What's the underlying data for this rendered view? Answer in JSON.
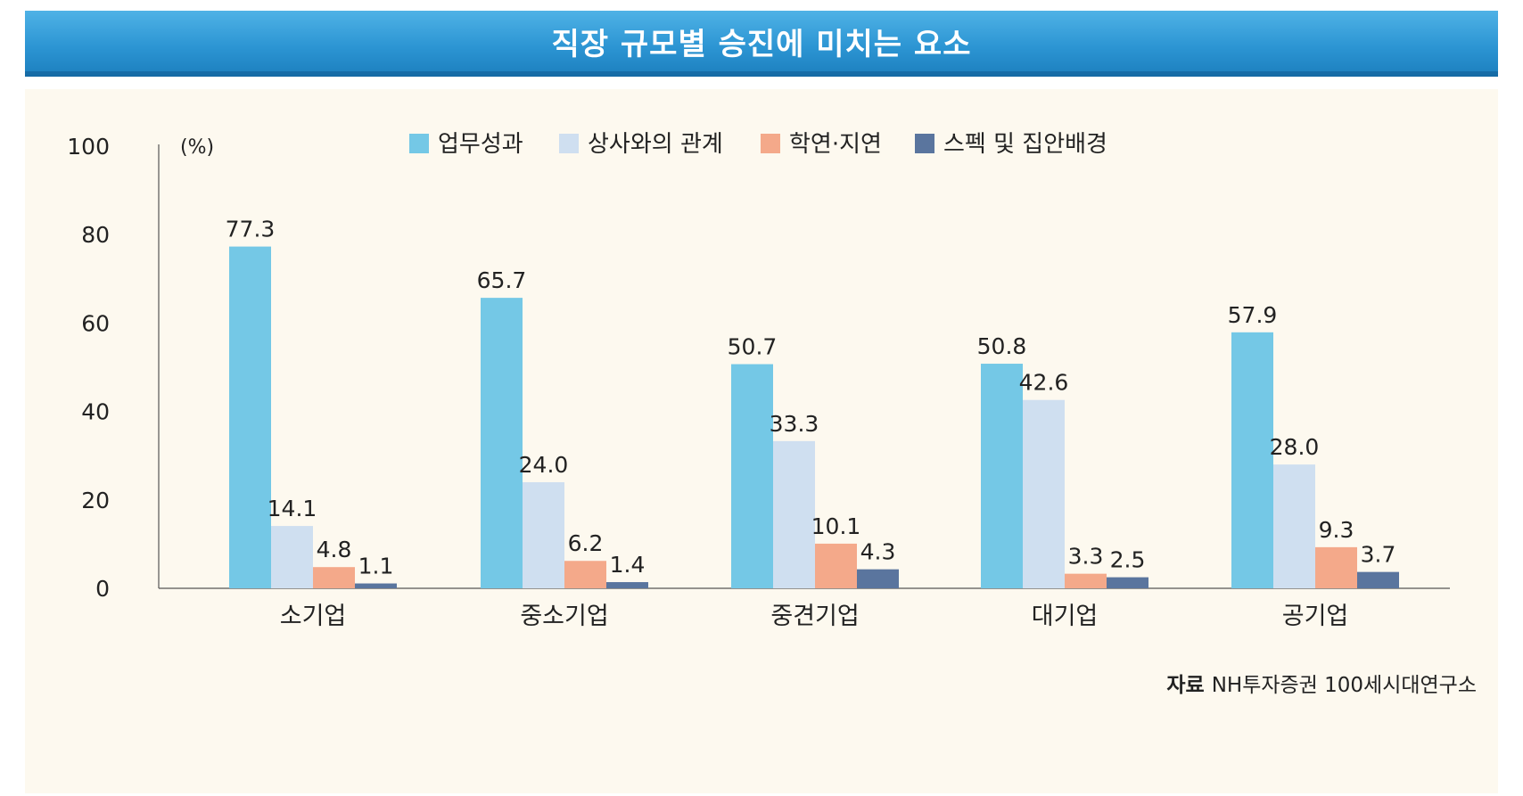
{
  "title": "직장 규모별 승진에 미치는 요소",
  "source": {
    "label": "자료",
    "text": "NH투자증권 100세시대연구소"
  },
  "chart_data": {
    "type": "bar",
    "unit_label": "(%)",
    "categories": [
      "소기업",
      "중소기업",
      "중견기업",
      "대기업",
      "공기업"
    ],
    "ylim": [
      0,
      100
    ],
    "yticks": [
      0,
      20,
      40,
      60,
      80,
      100
    ],
    "series": [
      {
        "name": "업무성과",
        "color": "#74c8e6",
        "values": [
          77.3,
          65.7,
          50.7,
          50.8,
          57.9
        ],
        "labels": [
          "77.3",
          "65.7",
          "50.7",
          "50.8",
          "57.9"
        ]
      },
      {
        "name": "상사와의 관계",
        "color": "#cfdff0",
        "values": [
          14.1,
          24.0,
          33.3,
          42.6,
          28.0
        ],
        "labels": [
          "14.1",
          "24.0",
          "33.3",
          "42.6",
          "28.0"
        ]
      },
      {
        "name": "학연·지연",
        "color": "#f4a98a",
        "values": [
          4.8,
          6.2,
          10.1,
          3.3,
          9.3
        ],
        "labels": [
          "4.8",
          "6.2",
          "10.1",
          "3.3",
          "9.3"
        ]
      },
      {
        "name": "스펙 및 집안배경",
        "color": "#5a759e",
        "values": [
          1.1,
          1.4,
          4.3,
          2.5,
          3.7
        ],
        "labels": [
          "1.1",
          "1.4",
          "4.3",
          "2.5",
          "3.7"
        ]
      }
    ],
    "legend": "top-center",
    "grid": false
  }
}
